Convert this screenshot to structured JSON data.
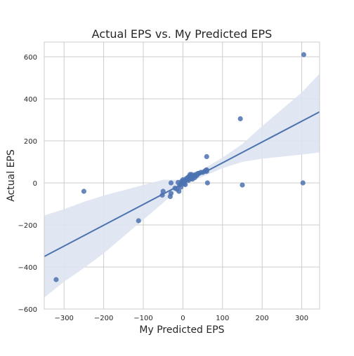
{
  "chart_data": {
    "type": "scatter",
    "title": "Actual EPS vs. My Predicted EPS",
    "xlabel": "My Predicted EPS",
    "ylabel": "Actual EPS",
    "xlim": [
      -350,
      345
    ],
    "ylim": [
      -600,
      670
    ],
    "xticks": [
      -300,
      -200,
      -100,
      0,
      100,
      200,
      300
    ],
    "yticks": [
      -600,
      -400,
      -200,
      0,
      200,
      400,
      600
    ],
    "grid": true,
    "style": "seaborn whitegrid, regression plot with 95% confidence band",
    "colors": {
      "points": "#4c72b0",
      "line": "#4c72b0",
      "band": "#dde4f1",
      "grid": "#cccccc",
      "axes_edge": "#cccccc"
    },
    "regression": {
      "x": [
        -350,
        345
      ],
      "y": [
        -350,
        338
      ]
    },
    "band": {
      "x": [
        -350,
        -300,
        -250,
        -200,
        -150,
        -100,
        -50,
        0,
        50,
        100,
        150,
        200,
        250,
        300,
        345
      ],
      "upper": [
        -155,
        -125,
        -90,
        -60,
        -35,
        -10,
        15,
        15,
        65,
        120,
        185,
        270,
        350,
        430,
        520
      ],
      "lower": [
        -545,
        -470,
        -405,
        -335,
        -255,
        -175,
        -95,
        -10,
        30,
        70,
        100,
        115,
        125,
        135,
        145
      ]
    },
    "series": [
      {
        "values": [
          {
            "x": 305,
            "y": 610
          },
          {
            "x": 145,
            "y": 305
          },
          {
            "x": 60,
            "y": 125
          },
          {
            "x": 303,
            "y": 0
          },
          {
            "x": 150,
            "y": -10
          },
          {
            "x": 62,
            "y": 0
          },
          {
            "x": -250,
            "y": -40
          },
          {
            "x": -112,
            "y": -180
          },
          {
            "x": -320,
            "y": -460
          },
          {
            "x": -50,
            "y": -40
          },
          {
            "x": -52,
            "y": -58
          },
          {
            "x": -32,
            "y": -65
          },
          {
            "x": -30,
            "y": -50
          },
          {
            "x": -30,
            "y": 0
          },
          {
            "x": -20,
            "y": -25
          },
          {
            "x": -15,
            "y": -30
          },
          {
            "x": -10,
            "y": -40
          },
          {
            "x": -8,
            "y": -10
          },
          {
            "x": -5,
            "y": -20
          },
          {
            "x": -2,
            "y": 0
          },
          {
            "x": 0,
            "y": 5
          },
          {
            "x": 0,
            "y": 15
          },
          {
            "x": 3,
            "y": -5
          },
          {
            "x": 5,
            "y": 10
          },
          {
            "x": 8,
            "y": 20
          },
          {
            "x": 10,
            "y": 15
          },
          {
            "x": 12,
            "y": 25
          },
          {
            "x": 15,
            "y": 30
          },
          {
            "x": 18,
            "y": 40
          },
          {
            "x": 20,
            "y": 20
          },
          {
            "x": 22,
            "y": 40
          },
          {
            "x": 25,
            "y": 30
          },
          {
            "x": 28,
            "y": 35
          },
          {
            "x": 30,
            "y": 25
          },
          {
            "x": 32,
            "y": 40
          },
          {
            "x": 35,
            "y": 35
          },
          {
            "x": 38,
            "y": 45
          },
          {
            "x": 40,
            "y": 45
          },
          {
            "x": 45,
            "y": 50
          },
          {
            "x": 50,
            "y": 50
          },
          {
            "x": 55,
            "y": 55
          },
          {
            "x": 58,
            "y": 60
          },
          {
            "x": 60,
            "y": 55
          },
          {
            "x": 60,
            "y": 62
          },
          {
            "x": 2,
            "y": 3
          },
          {
            "x": -3,
            "y": 8
          },
          {
            "x": 6,
            "y": -8
          },
          {
            "x": 14,
            "y": 12
          },
          {
            "x": -12,
            "y": 2
          },
          {
            "x": 24,
            "y": 18
          }
        ]
      }
    ]
  }
}
